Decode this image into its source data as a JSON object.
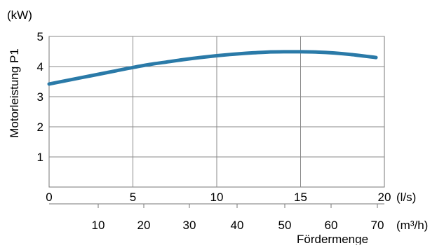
{
  "chart_data": {
    "type": "line",
    "title": "",
    "ylabel": "Motorleistung P1",
    "yunit": "(kW)",
    "xlabel": "Fördermenge",
    "ylim": [
      0,
      5
    ],
    "yticks": [
      "1",
      "2",
      "3",
      "4",
      "5"
    ],
    "grid": true,
    "x_axis_primary": {
      "unit": "(l/s)",
      "range": [
        0,
        20
      ],
      "ticks": [
        "0",
        "5",
        "10",
        "15",
        "20"
      ]
    },
    "x_axis_secondary": {
      "unit": "(m³/h)",
      "ticks": [
        "10",
        "20",
        "30",
        "40",
        "50",
        "60",
        "70"
      ]
    },
    "series": [
      {
        "color": "#2a7aa8",
        "x": [
          0,
          1,
          2,
          3,
          4,
          5,
          6,
          7,
          8,
          9,
          10,
          11,
          12,
          13,
          14,
          15,
          16,
          17,
          18,
          19.5
        ],
        "y": [
          3.42,
          3.53,
          3.64,
          3.75,
          3.86,
          3.97,
          4.07,
          4.15,
          4.23,
          4.3,
          4.36,
          4.41,
          4.45,
          4.48,
          4.49,
          4.49,
          4.48,
          4.45,
          4.4,
          4.3
        ]
      }
    ]
  }
}
